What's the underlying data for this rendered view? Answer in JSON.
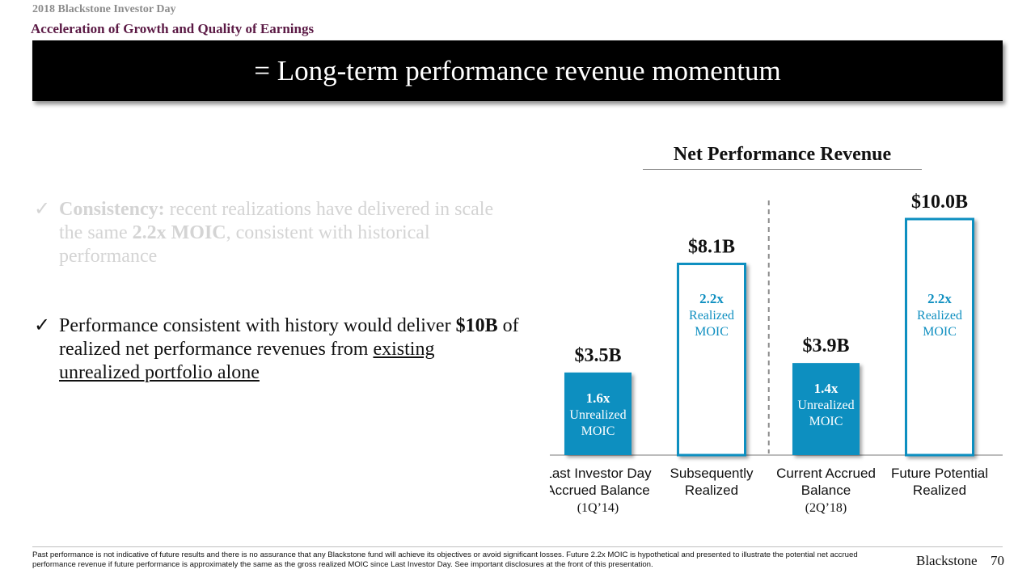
{
  "header": {
    "event": "2018 Blackstone Investor Day",
    "section": "Acceleration of Growth and Quality of Earnings",
    "banner": "= Long-term performance revenue momentum"
  },
  "bullets": [
    {
      "icon": "check-icon",
      "check": "✓",
      "bold": "Consistency:",
      "text1": " recent realizations have delivered in scale the same ",
      "bold2": "2.2x MOIC",
      "text2": ", consistent with historical performance"
    },
    {
      "icon": "check-icon",
      "check": "✓",
      "text1": "Performance consistent with history would deliver ",
      "bold": "$10B",
      "text2": " of realized net performance revenues from ",
      "underlined": "existing unrealized portfolio alone"
    }
  ],
  "colors": {
    "accent": "#0f8fc0",
    "bar_fill": "#0f8fc0",
    "bar_outline": "#0f8fc0",
    "section_title": "#5b1a45",
    "banner": "#000000"
  },
  "chart_data": {
    "type": "bar",
    "title": "Net Performance Revenue",
    "categories": [
      [
        "Last Investor Day",
        "Accrued Balance",
        "(1Q’14)"
      ],
      [
        "Subsequently",
        "Realized"
      ],
      [
        "Current Accrued",
        "Balance",
        "(2Q’18)"
      ],
      [
        "Future Potential",
        "Realized"
      ]
    ],
    "values": [
      3.5,
      8.1,
      3.9,
      10.0
    ],
    "unit": "$B",
    "data_labels": [
      "$3.5B",
      "$8.1B",
      "$3.9B",
      "$10.0B"
    ],
    "bar_styles": [
      "filled",
      "outline",
      "filled",
      "outline"
    ],
    "inner_labels": [
      [
        "1.6x",
        "Unrealized",
        "MOIC"
      ],
      [
        "2.2x",
        "Realized",
        "MOIC"
      ],
      [
        "1.4x",
        "Unrealized",
        "MOIC"
      ],
      [
        "2.2x",
        "Realized",
        "MOIC"
      ]
    ],
    "divider_after_index": 1,
    "ylim": [
      0,
      10.0
    ],
    "grid": false
  },
  "footer": {
    "disclaimer": "Past performance is not indicative of future results and there is no assurance that any Blackstone fund will achieve its objectives or avoid significant losses. Future 2.2x MOIC is hypothetical and presented to illustrate the potential net accrued performance revenue if future performance is approximately the same as the gross realized MOIC since Last Investor Day. See important disclosures at the front of this presentation.",
    "brand": "Blackstone",
    "page": "70"
  }
}
